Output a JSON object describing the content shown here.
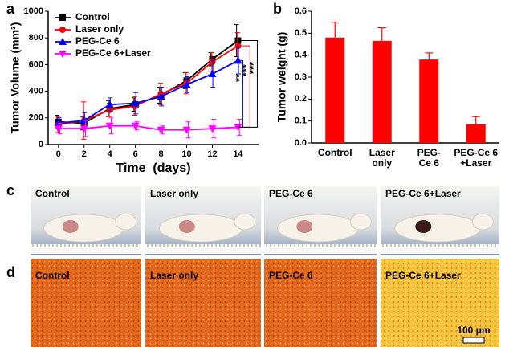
{
  "chart_data": [
    {
      "type": "line",
      "panel_label": "a",
      "xlabel": "Time  (days)",
      "ylabel": "Tumor Volume (mm³)",
      "x": [
        0,
        2,
        4,
        6,
        8,
        10,
        12,
        14
      ],
      "series": [
        {
          "name": "Control",
          "color": "#000000",
          "marker": "square",
          "values": [
            170,
            160,
            270,
            300,
            370,
            480,
            640,
            780
          ],
          "errors": [
            50,
            50,
            60,
            50,
            60,
            60,
            50,
            120
          ]
        },
        {
          "name": "Laser only",
          "color": "#ff0000",
          "marker": "circle",
          "values": [
            150,
            180,
            260,
            290,
            380,
            460,
            620,
            740
          ],
          "errors": [
            60,
            140,
            50,
            70,
            80,
            80,
            70,
            100
          ]
        },
        {
          "name": "PEG-Ce 6",
          "color": "#0000ff",
          "marker": "triangle",
          "values": [
            160,
            180,
            300,
            310,
            360,
            450,
            530,
            630
          ],
          "errors": [
            40,
            60,
            50,
            80,
            70,
            60,
            100,
            100
          ]
        },
        {
          "name": "PEG-Ce 6+Laser",
          "color": "#ff00ff",
          "marker": "triangle-down",
          "values": [
            120,
            120,
            140,
            140,
            110,
            110,
            120,
            130
          ],
          "errors": [
            40,
            60,
            60,
            30,
            30,
            60,
            70,
            60
          ]
        }
      ],
      "annotations": [
        {
          "text": "**",
          "color": "#0000ff"
        },
        {
          "text": "***",
          "color": "#ff0000"
        },
        {
          "text": "***",
          "color": "#000000"
        }
      ],
      "xlim": [
        -0.8,
        15.6
      ],
      "ylim": [
        0,
        1000
      ],
      "xticks": [
        0,
        2,
        4,
        6,
        8,
        10,
        12,
        14
      ],
      "yticks": [
        0,
        200,
        400,
        600,
        800,
        1000
      ],
      "legend": "upper left"
    },
    {
      "type": "bar",
      "panel_label": "b",
      "ylabel": "Tumor weight (g)",
      "categories": [
        "Control",
        "Laser\nonly",
        "PEG-\nCe 6",
        "PEG-Ce 6\n+Laser"
      ],
      "values": [
        0.48,
        0.465,
        0.38,
        0.085
      ],
      "errors": [
        0.07,
        0.06,
        0.03,
        0.035
      ],
      "color": "#ff0000",
      "ylim": [
        0,
        0.6
      ],
      "yticks": [
        {
          "value": 0,
          "label": "0.0"
        },
        0.1,
        0.2,
        0.3,
        0.4,
        0.5,
        0.6
      ]
    }
  ],
  "panel_c": {
    "letter": "c",
    "images": [
      "Control",
      "Laser only",
      "PEG-Ce 6",
      "PEG-Ce 6+Laser"
    ]
  },
  "panel_d": {
    "letter": "d",
    "images": [
      "Control",
      "Laser only",
      "PEG-Ce 6",
      "PEG-Ce 6+Laser"
    ],
    "scale_bar": "100 μm"
  }
}
